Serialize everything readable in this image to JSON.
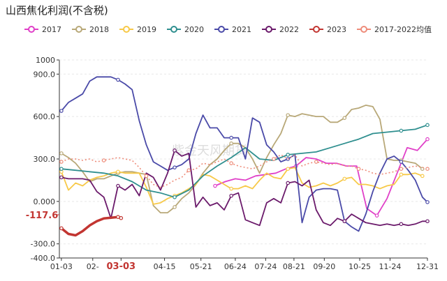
{
  "title": "山西焦化利润(不含税)",
  "watermark": "紫金天风期货",
  "chart_data": {
    "type": "line",
    "ylim": [
      -400,
      1000
    ],
    "yticks": [
      "1000",
      "900.0",
      "600.0",
      "300.0",
      "0.000",
      "-300.0",
      "-400.0"
    ],
    "ytick_values": [
      1000,
      900,
      600,
      300,
      0,
      -300,
      -400
    ],
    "xlim": [
      1,
      365
    ],
    "xticks": [
      {
        "label": "01-03",
        "day": 3
      },
      {
        "label": "02-",
        "day": 34
      },
      {
        "label": "03-03",
        "day": 62,
        "highlight": true
      },
      {
        "label": "04-15",
        "day": 105
      },
      {
        "label": "05-21",
        "day": 141
      },
      {
        "label": "06-24",
        "day": 175
      },
      {
        "label": "07-24",
        "day": 205
      },
      {
        "label": "08-21",
        "day": 233
      },
      {
        "label": "09-20",
        "day": 263
      },
      {
        "label": "10-25",
        "day": 298
      },
      {
        "label": "11-24",
        "day": 328
      },
      {
        "label": "12-31",
        "day": 365
      }
    ],
    "value_label": {
      "text": "-117.6",
      "color": "#c23531"
    },
    "series": [
      {
        "name": "2017",
        "color": "#e040c8",
        "x": [
          155,
          165,
          175,
          185,
          195,
          205,
          215,
          225,
          235,
          245,
          255,
          265,
          275,
          285,
          295,
          305,
          315,
          325,
          335,
          345,
          355,
          365
        ],
        "y": [
          110,
          140,
          160,
          150,
          180,
          190,
          200,
          230,
          250,
          310,
          300,
          270,
          270,
          250,
          250,
          -50,
          -100,
          20,
          200,
          380,
          360,
          440
        ]
      },
      {
        "name": "2018",
        "color": "#b8a878",
        "x": [
          3,
          10,
          17,
          24,
          31,
          38,
          45,
          52,
          59,
          66,
          73,
          80,
          87,
          94,
          101,
          108,
          115,
          122,
          129,
          136,
          143,
          150,
          157,
          164,
          171,
          178,
          185,
          192,
          199,
          206,
          213,
          220,
          227,
          234,
          241,
          248,
          255,
          262,
          269,
          276,
          283,
          290,
          297,
          304,
          311,
          318,
          325,
          332,
          339,
          346,
          353,
          360
        ],
        "y": [
          340,
          310,
          270,
          210,
          140,
          160,
          160,
          180,
          200,
          210,
          210,
          200,
          190,
          -30,
          -80,
          -80,
          -40,
          20,
          60,
          120,
          200,
          260,
          300,
          360,
          410,
          410,
          380,
          300,
          200,
          310,
          400,
          480,
          610,
          600,
          620,
          610,
          600,
          600,
          560,
          560,
          590,
          650,
          660,
          680,
          670,
          580,
          300,
          290,
          290,
          280,
          270,
          230
        ]
      },
      {
        "name": "2019",
        "color": "#f7c948",
        "x": [
          3,
          10,
          17,
          24,
          31,
          38,
          45,
          52,
          59,
          66,
          73,
          80,
          87,
          94,
          101,
          108,
          115,
          122,
          129,
          136,
          143,
          150,
          157,
          164,
          171,
          178,
          185,
          192,
          199,
          206,
          213,
          220,
          227,
          234,
          241,
          248,
          255,
          262,
          269,
          276,
          283,
          290,
          297,
          304,
          311,
          318,
          325,
          332,
          339,
          346,
          353,
          360
        ],
        "y": [
          210,
          80,
          130,
          110,
          150,
          170,
          180,
          200,
          210,
          200,
          200,
          200,
          100,
          -20,
          -10,
          20,
          40,
          60,
          90,
          120,
          190,
          180,
          150,
          120,
          90,
          90,
          110,
          90,
          150,
          200,
          170,
          160,
          230,
          240,
          130,
          100,
          110,
          130,
          110,
          130,
          160,
          170,
          120,
          120,
          110,
          90,
          110,
          120,
          190,
          190,
          200,
          180
        ]
      },
      {
        "name": "2020",
        "color": "#2f8f8f",
        "x": [
          3,
          17,
          31,
          45,
          59,
          73,
          87,
          101,
          115,
          129,
          143,
          157,
          171,
          185,
          199,
          213,
          227,
          241,
          255,
          269,
          283,
          297,
          311,
          325,
          339,
          353,
          365
        ],
        "y": [
          230,
          220,
          210,
          200,
          180,
          140,
          80,
          60,
          30,
          80,
          180,
          250,
          310,
          380,
          300,
          290,
          330,
          340,
          350,
          380,
          410,
          440,
          480,
          490,
          500,
          510,
          540
        ]
      },
      {
        "name": "2021",
        "color": "#4a4aa8",
        "x": [
          3,
          10,
          17,
          24,
          31,
          38,
          45,
          52,
          59,
          66,
          73,
          80,
          87,
          94,
          101,
          108,
          115,
          122,
          129,
          136,
          143,
          150,
          157,
          164,
          171,
          178,
          185,
          192,
          199,
          206,
          213,
          220,
          227,
          234,
          241,
          248,
          255,
          262,
          269,
          276,
          283,
          290,
          297,
          304,
          311,
          318,
          325,
          332,
          339,
          346,
          353,
          360,
          365
        ],
        "y": [
          640,
          700,
          730,
          760,
          850,
          880,
          880,
          880,
          860,
          830,
          790,
          570,
          400,
          280,
          250,
          220,
          240,
          260,
          300,
          480,
          610,
          520,
          520,
          450,
          450,
          450,
          300,
          590,
          560,
          400,
          350,
          280,
          300,
          330,
          -150,
          30,
          80,
          90,
          90,
          80,
          -140,
          -180,
          -210,
          -90,
          70,
          200,
          300,
          320,
          280,
          220,
          150,
          30,
          -5
        ]
      },
      {
        "name": "2022",
        "color": "#6b1a6b",
        "x": [
          3,
          10,
          17,
          24,
          31,
          38,
          45,
          52,
          59,
          66,
          73,
          80,
          87,
          94,
          101,
          108,
          115,
          122,
          129,
          136,
          143,
          150,
          157,
          164,
          171,
          178,
          185,
          192,
          199,
          206,
          213,
          220,
          227,
          234,
          241,
          248,
          255,
          262,
          269,
          276,
          283,
          290,
          297,
          304,
          311,
          318,
          325,
          332,
          339,
          346,
          353,
          360,
          365
        ],
        "y": [
          170,
          160,
          160,
          160,
          150,
          70,
          30,
          -120,
          110,
          80,
          120,
          40,
          200,
          170,
          80,
          200,
          360,
          320,
          340,
          -40,
          30,
          -30,
          -10,
          -60,
          40,
          60,
          -130,
          -150,
          -170,
          -10,
          20,
          -10,
          130,
          140,
          110,
          150,
          -60,
          -150,
          -170,
          -120,
          -140,
          -90,
          -120,
          -150,
          -160,
          -170,
          -160,
          -170,
          -160,
          -170,
          -160,
          -140,
          -140
        ]
      },
      {
        "name": "2023",
        "color": "#c23531",
        "x": [
          3,
          10,
          17,
          24,
          31,
          38,
          45,
          52,
          59,
          62
        ],
        "y": [
          -190,
          -230,
          -240,
          -210,
          -170,
          -140,
          -120,
          -115,
          -110,
          -117.6
        ]
      },
      {
        "name": "2017-2022均值",
        "color": "#ee8c7a",
        "dashed": true,
        "x": [
          3,
          10,
          17,
          24,
          31,
          38,
          45,
          52,
          59,
          66,
          73,
          80,
          87,
          94,
          101,
          108,
          115,
          122,
          129,
          136,
          143,
          150,
          157,
          164,
          171,
          178,
          185,
          192,
          199,
          206,
          213,
          220,
          227,
          234,
          241,
          248,
          255,
          262,
          269,
          276,
          283,
          290,
          297,
          304,
          311,
          318,
          325,
          332,
          339,
          346,
          353,
          360,
          365
        ],
        "y": [
          280,
          300,
          300,
          290,
          300,
          280,
          290,
          300,
          310,
          300,
          290,
          240,
          180,
          120,
          100,
          120,
          150,
          170,
          220,
          230,
          270,
          260,
          280,
          300,
          270,
          250,
          240,
          230,
          250,
          280,
          300,
          330,
          300,
          330,
          250,
          270,
          280,
          270,
          260,
          270,
          250,
          250,
          230,
          220,
          200,
          190,
          200,
          210,
          230,
          240,
          250,
          240,
          230
        ]
      }
    ]
  }
}
